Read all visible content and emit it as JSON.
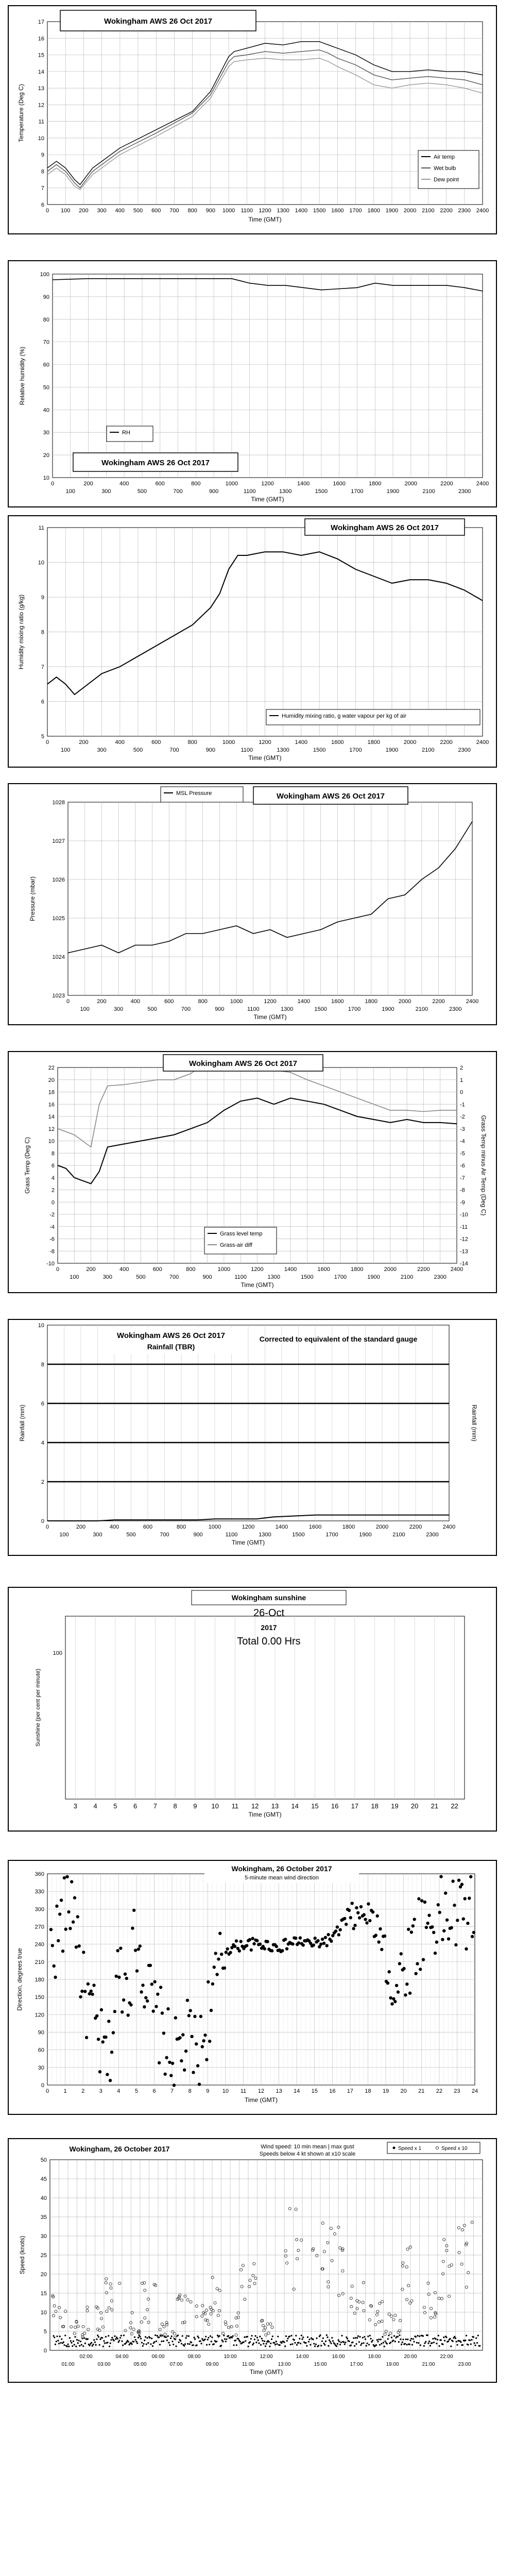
{
  "chart_data": [
    {
      "id": "temp",
      "type": "line",
      "title": "Wokingham AWS 26 Oct 2017",
      "xlabel": "Time (GMT)",
      "ylabel": "Temperature (Deg C)",
      "xlim": [
        0,
        2400
      ],
      "ylim": [
        6,
        17
      ],
      "xticks": [
        "0",
        "100",
        "200",
        "300",
        "400",
        "500",
        "600",
        "700",
        "800",
        "900",
        "1000",
        "1100",
        "1200",
        "1300",
        "1400",
        "1500",
        "1600",
        "1700",
        "1800",
        "1900",
        "2000",
        "2100",
        "2200",
        "2300",
        "2400"
      ],
      "yticks": [
        "6",
        "7",
        "8",
        "9",
        "10",
        "11",
        "12",
        "13",
        "14",
        "15",
        "16",
        "17"
      ],
      "legend": [
        "Air temp",
        "Wet bulb",
        "Dew point"
      ],
      "legend_position": "bottom-right",
      "grid": true,
      "series": [
        {
          "name": "Air temp",
          "color": "#000000",
          "x": [
            0,
            50,
            100,
            150,
            180,
            250,
            400,
            600,
            800,
            900,
            1000,
            1030,
            1100,
            1200,
            1300,
            1400,
            1500,
            1550,
            1600,
            1700,
            1800,
            1900,
            2000,
            2100,
            2200,
            2300,
            2400
          ],
          "values": [
            8.2,
            8.6,
            8.2,
            7.5,
            7.2,
            8.2,
            9.4,
            10.5,
            11.6,
            12.8,
            14.9,
            15.2,
            15.4,
            15.7,
            15.6,
            15.8,
            15.8,
            15.6,
            15.4,
            15.0,
            14.4,
            14.0,
            14.0,
            14.1,
            14.0,
            14.0,
            13.8
          ]
        },
        {
          "name": "Wet bulb",
          "color": "#555555",
          "x": [
            0,
            50,
            100,
            150,
            180,
            250,
            400,
            600,
            800,
            900,
            1000,
            1030,
            1100,
            1200,
            1300,
            1400,
            1500,
            1550,
            1600,
            1700,
            1800,
            1900,
            2000,
            2100,
            2200,
            2300,
            2400
          ],
          "values": [
            8.0,
            8.4,
            8.0,
            7.3,
            7.0,
            8.0,
            9.2,
            10.3,
            11.5,
            12.6,
            14.6,
            14.9,
            15.0,
            15.2,
            15.1,
            15.2,
            15.3,
            15.1,
            14.8,
            14.4,
            13.8,
            13.5,
            13.6,
            13.7,
            13.6,
            13.5,
            13.2
          ]
        },
        {
          "name": "Dew point",
          "color": "#999999",
          "x": [
            0,
            50,
            100,
            150,
            180,
            250,
            400,
            600,
            800,
            900,
            1000,
            1030,
            1100,
            1200,
            1300,
            1400,
            1500,
            1550,
            1600,
            1700,
            1800,
            1900,
            2000,
            2100,
            2200,
            2300,
            2400
          ],
          "values": [
            7.8,
            8.2,
            7.8,
            7.1,
            6.9,
            7.8,
            9.0,
            10.1,
            11.3,
            12.4,
            14.3,
            14.6,
            14.7,
            14.8,
            14.7,
            14.7,
            14.8,
            14.6,
            14.3,
            13.8,
            13.2,
            13.0,
            13.2,
            13.3,
            13.2,
            13.0,
            12.7
          ]
        }
      ]
    },
    {
      "id": "rh",
      "type": "line",
      "title": "Wokingham AWS 26 Oct 2017",
      "xlabel": "Time (GMT)",
      "ylabel": "Relative humidity (%)",
      "xlim": [
        0,
        2400
      ],
      "ylim": [
        10,
        100
      ],
      "xticks_top": [
        "0",
        "200",
        "400",
        "600",
        "800",
        "1000",
        "1200",
        "1400",
        "1600",
        "1800",
        "2000",
        "2200",
        "2400"
      ],
      "xticks_bottom": [
        "100",
        "300",
        "500",
        "700",
        "900",
        "1100",
        "1300",
        "1500",
        "1700",
        "1900",
        "2100",
        "2300"
      ],
      "yticks": [
        "10",
        "20",
        "30",
        "40",
        "50",
        "60",
        "70",
        "80",
        "90",
        "100"
      ],
      "legend": [
        "RH"
      ],
      "legend_position": "bottom-left",
      "grid": true,
      "series": [
        {
          "name": "RH",
          "color": "#000000",
          "x": [
            0,
            200,
            400,
            600,
            800,
            1000,
            1050,
            1100,
            1200,
            1300,
            1400,
            1500,
            1600,
            1700,
            1800,
            1900,
            2000,
            2100,
            2200,
            2300,
            2400
          ],
          "values": [
            97.5,
            98,
            98,
            98,
            98,
            98,
            97,
            96,
            95,
            95,
            94,
            93,
            93.5,
            94,
            96,
            95,
            95,
            95,
            95,
            94,
            92.5
          ]
        }
      ]
    },
    {
      "id": "mix",
      "type": "line",
      "title": "Wokingham AWS 26 Oct 2017",
      "xlabel": "Time (GMT)",
      "ylabel": "Humidity mixing ratio (g/kg)",
      "xlim": [
        0,
        2400
      ],
      "ylim": [
        5,
        11
      ],
      "xticks_top": [
        "0",
        "200",
        "400",
        "600",
        "800",
        "1000",
        "1200",
        "1400",
        "1600",
        "1800",
        "2000",
        "2200",
        "2400"
      ],
      "xticks_bottom": [
        "100",
        "300",
        "500",
        "700",
        "900",
        "1100",
        "1300",
        "1500",
        "1700",
        "1900",
        "2100",
        "2300"
      ],
      "yticks": [
        "5",
        "6",
        "7",
        "8",
        "9",
        "10",
        "11"
      ],
      "legend": [
        "Humidity mixing ratio, g water vapour per kg of air"
      ],
      "legend_position": "bottom-right",
      "grid": true,
      "series": [
        {
          "name": "Humidity mixing ratio, g water vapour per kg of air",
          "color": "#000000",
          "x": [
            0,
            50,
            100,
            150,
            200,
            300,
            400,
            500,
            600,
            700,
            800,
            900,
            950,
            1000,
            1050,
            1100,
            1200,
            1300,
            1400,
            1500,
            1600,
            1700,
            1800,
            1900,
            2000,
            2100,
            2200,
            2300,
            2400
          ],
          "values": [
            6.5,
            6.7,
            6.5,
            6.2,
            6.4,
            6.8,
            7.0,
            7.3,
            7.6,
            7.9,
            8.2,
            8.7,
            9.1,
            9.8,
            10.2,
            10.2,
            10.3,
            10.3,
            10.2,
            10.3,
            10.1,
            9.8,
            9.6,
            9.4,
            9.5,
            9.5,
            9.4,
            9.2,
            8.9
          ]
        }
      ]
    },
    {
      "id": "pressure",
      "type": "line",
      "title": "Wokingham AWS 26 Oct 2017",
      "xlabel": "Time (GMT)",
      "ylabel": "Pressure (mbar)",
      "xlim": [
        0,
        2400
      ],
      "ylim": [
        1023,
        1028
      ],
      "xticks_top": [
        "0",
        "200",
        "400",
        "600",
        "800",
        "1000",
        "1200",
        "1400",
        "1600",
        "1800",
        "2000",
        "2200",
        "2400"
      ],
      "xticks_bottom": [
        "100",
        "300",
        "500",
        "700",
        "900",
        "1100",
        "1300",
        "1500",
        "1700",
        "1900",
        "2100",
        "2300"
      ],
      "yticks": [
        "1023",
        "1024",
        "1025",
        "1026",
        "1027",
        "1028"
      ],
      "legend": [
        "MSL Pressure"
      ],
      "legend_position": "top-left",
      "grid": true,
      "series": [
        {
          "name": "MSL Pressure",
          "color": "#000000",
          "x": [
            0,
            100,
            200,
            300,
            400,
            500,
            600,
            700,
            800,
            900,
            1000,
            1100,
            1200,
            1300,
            1400,
            1500,
            1600,
            1700,
            1800,
            1900,
            2000,
            2100,
            2200,
            2300,
            2400
          ],
          "values": [
            1024.1,
            1024.2,
            1024.3,
            1024.1,
            1024.3,
            1024.3,
            1024.4,
            1024.6,
            1024.6,
            1024.7,
            1024.8,
            1024.6,
            1024.7,
            1024.5,
            1024.6,
            1024.7,
            1024.9,
            1025.0,
            1025.1,
            1025.5,
            1025.6,
            1026.0,
            1026.3,
            1026.8,
            1027.5
          ]
        }
      ]
    },
    {
      "id": "grass",
      "type": "line",
      "title": "Wokingham AWS 26 Oct 2017",
      "xlabel": "Time (GMT)",
      "ylabel": "Grass Temp (Deg C)",
      "ylabel_right": "Grass Temp minus Air Temp (Deg C)",
      "xlim": [
        0,
        2400
      ],
      "ylim": [
        -10,
        22
      ],
      "ylim_right": [
        -14,
        2
      ],
      "xticks_top": [
        "0",
        "200",
        "400",
        "600",
        "800",
        "1000",
        "1200",
        "1400",
        "1600",
        "1800",
        "2000",
        "2200",
        "2400"
      ],
      "xticks_bottom": [
        "100",
        "300",
        "500",
        "700",
        "900",
        "1100",
        "1300",
        "1500",
        "1700",
        "1900",
        "2100",
        "2300"
      ],
      "yticks": [
        "-10",
        "-8",
        "-6",
        "-4",
        "-2",
        "0",
        "2",
        "4",
        "6",
        "8",
        "10",
        "12",
        "14",
        "16",
        "18",
        "20",
        "22"
      ],
      "yticks_right": [
        "-14",
        "-13",
        "-12",
        "-11",
        "-10",
        "-9",
        "-8",
        "-7",
        "-6",
        "-5",
        "-4",
        "-3",
        "-2",
        "-1",
        "0",
        "1",
        "2"
      ],
      "legend": [
        "Grass level temp",
        "Grass-air diff"
      ],
      "legend_position": "bottom-center",
      "grid": true,
      "series": [
        {
          "name": "Grass level temp",
          "color": "#000000",
          "x": [
            0,
            50,
            100,
            150,
            200,
            250,
            300,
            400,
            500,
            600,
            700,
            800,
            900,
            1000,
            1100,
            1200,
            1300,
            1400,
            1500,
            1600,
            1700,
            1800,
            1900,
            2000,
            2100,
            2200,
            2300,
            2400
          ],
          "values": [
            6,
            5.5,
            4,
            3.5,
            3,
            5,
            9,
            9.5,
            10,
            10.5,
            11,
            12,
            13,
            15,
            16.5,
            17,
            16,
            17,
            16.5,
            16,
            15,
            14,
            13.5,
            13,
            13.5,
            13,
            13,
            12.8
          ]
        },
        {
          "name": "Grass-air diff",
          "color": "#888888",
          "x": [
            0,
            100,
            150,
            200,
            250,
            300,
            400,
            500,
            600,
            700,
            800,
            850,
            900,
            1000,
            1100,
            1200,
            1300,
            1400,
            1500,
            1600,
            1700,
            1800,
            1900,
            2000,
            2100,
            2200,
            2300,
            2400
          ],
          "values": [
            -3,
            -3.5,
            -4,
            -4.5,
            -1,
            0.5,
            0.6,
            0.8,
            1,
            1,
            1.5,
            2,
            2,
            1.8,
            1.8,
            1.9,
            1.8,
            1.6,
            1,
            0.5,
            0,
            -0.5,
            -1,
            -1.5,
            -1.5,
            -1.6,
            -1.5,
            -1.5
          ]
        }
      ]
    },
    {
      "id": "rain",
      "type": "line",
      "title": "Wokingham AWS 26 Oct 2017",
      "subtitle": "Rainfall (TBR)",
      "annotation": "Corrected to equivalent of the standard gauge",
      "xlabel": "Time (GMT)",
      "ylabel": "Rainfall (mm)",
      "ylabel_right": "Rainfall (mm)",
      "xlim": [
        0,
        2400
      ],
      "ylim": [
        0,
        10
      ],
      "xticks_top": [
        "0",
        "200",
        "400",
        "600",
        "800",
        "1000",
        "1200",
        "1400",
        "1600",
        "1800",
        "2000",
        "2200",
        "2400"
      ],
      "xticks_bottom": [
        "100",
        "300",
        "500",
        "700",
        "900",
        "1100",
        "1300",
        "1500",
        "1700",
        "1900",
        "2100",
        "2300"
      ],
      "yticks": [
        "0",
        "2",
        "4",
        "6",
        "8",
        "10"
      ],
      "grid": true,
      "series": [
        {
          "name": "Rainfall",
          "color": "#000000",
          "x": [
            0,
            300,
            400,
            900,
            1000,
            1250,
            1350,
            1600,
            2400
          ],
          "values": [
            0,
            0,
            0.05,
            0.05,
            0.1,
            0.1,
            0.2,
            0.3,
            0.3
          ]
        }
      ]
    },
    {
      "id": "sun",
      "type": "bar",
      "title": "Wokingham sunshine",
      "subtitle": "26-Oct",
      "year_label": "2017",
      "total_label": "Total 0.00 Hrs",
      "xlabel": "Time (GMT)",
      "ylabel": "Sunshine (per cent per minute)",
      "xlim": [
        2.5,
        22.5
      ],
      "ylim": [
        0,
        125
      ],
      "xticks": [
        "3",
        "4",
        "5",
        "6",
        "7",
        "8",
        "9",
        "10",
        "11",
        "12",
        "13",
        "14",
        "15",
        "16",
        "17",
        "18",
        "19",
        "20",
        "21",
        "22"
      ],
      "yticks": [
        "100"
      ],
      "grid": true,
      "values": []
    },
    {
      "id": "dir",
      "type": "scatter",
      "title": "Wokingham,  26 October 2017",
      "subtitle": "5-minute mean wind direction",
      "xlabel": "Time (GMT)",
      "ylabel": "Direction, degrees true",
      "xlim": [
        0,
        24
      ],
      "ylim": [
        0,
        360
      ],
      "xticks": [
        "0",
        "1",
        "2",
        "3",
        "4",
        "5",
        "6",
        "7",
        "8",
        "9",
        "10",
        "11",
        "12",
        "13",
        "14",
        "15",
        "16",
        "17",
        "18",
        "19",
        "20",
        "21",
        "22",
        "23",
        "24"
      ],
      "yticks": [
        "0",
        "30",
        "60",
        "90",
        "120",
        "150",
        "180",
        "210",
        "240",
        "270",
        "300",
        "330",
        "360"
      ],
      "grid": true
    },
    {
      "id": "speed",
      "type": "scatter",
      "title": "Wokingham,  26 October 2017",
      "subtitle": "Wind speed: 10 min mean | max gust",
      "subtitle2": "Speeds below 4 kt shown at x10 scale",
      "xlabel": "Time (GMT)",
      "ylabel": "Speed (knots)",
      "xlim": [
        0,
        24
      ],
      "ylim": [
        0,
        50
      ],
      "xticks_top": [
        "02:00",
        "04:00",
        "06:00",
        "08:00",
        "10:00",
        "12:00",
        "14:00",
        "16:00",
        "18:00",
        "20:00",
        "22:00"
      ],
      "xticks_bottom": [
        "01:00",
        "03:00",
        "05:00",
        "07:00",
        "09:00",
        "11:00",
        "13:00",
        "15:00",
        "17:00",
        "19:00",
        "21:00",
        "23:00"
      ],
      "yticks": [
        "0",
        "5",
        "10",
        "15",
        "20",
        "25",
        "30",
        "35",
        "40",
        "45",
        "50"
      ],
      "legend": [
        "Speed x 1",
        "Speed x 10"
      ],
      "legend_position": "top-right",
      "grid": true
    }
  ]
}
